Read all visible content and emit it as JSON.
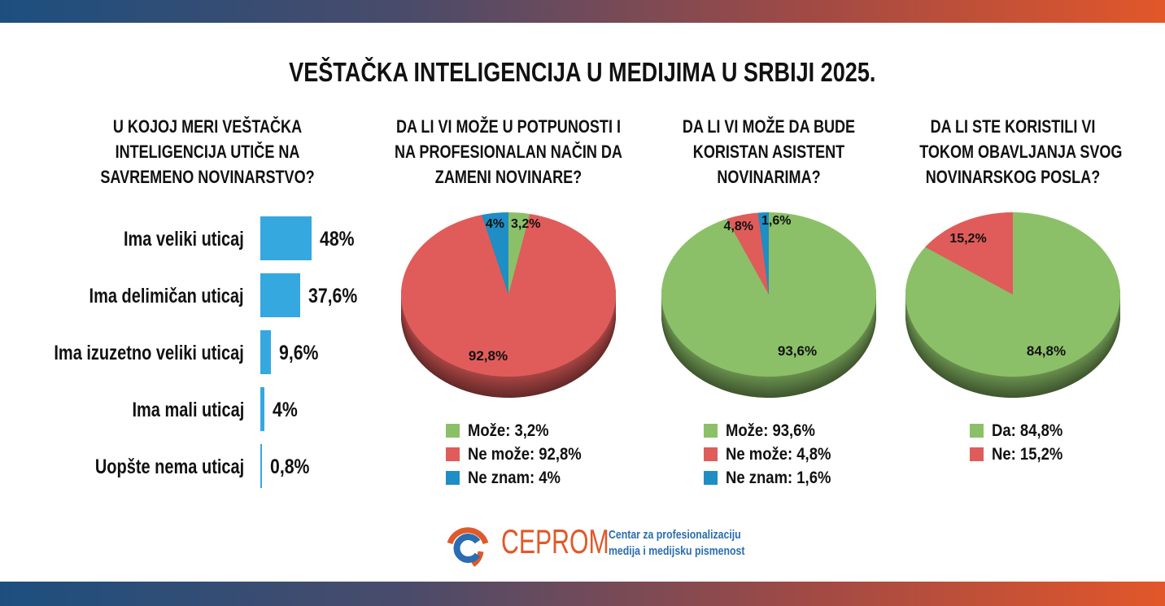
{
  "title": "VEŠTAČKA INTELIGENCIJA U MEDIJIMA U SRBIJI 2025.",
  "colors": {
    "bar": "#35a8e0",
    "green": "#8cc068",
    "red": "#e05c5a",
    "blue": "#1e8ec4",
    "brand_orange": "#e0592a",
    "brand_blue": "#2a6db0"
  },
  "chart_data": [
    {
      "type": "bar",
      "orientation": "horizontal",
      "title": "U KOJOJ MERI VEŠTAČKA INTELIGENCIJA UTIČE NA SAVREMENO NOVINARSTVO?",
      "title_lines": [
        "U KOJOJ MERI VEŠTAČKA",
        "INTELIGENCIJA UTIČE NA",
        "SAVREMENO NOVINARSTVO?"
      ],
      "categories": [
        "Ima veliki uticaj",
        "Ima delimičan uticaj",
        "Ima izuzetno veliki uticaj",
        "Ima mali uticaj",
        "Uopšte nema uticaj"
      ],
      "values": [
        48,
        37.6,
        9.6,
        4,
        0.8
      ],
      "labels": [
        "48%",
        "37,6%",
        "9,6%",
        "4%",
        "0,8%"
      ]
    },
    {
      "type": "pie",
      "title": "DA LI VI MOŽE U POTPUNOSTI I NA PROFESIONALAN NAČIN DA ZAMENI NOVINARE?",
      "title_lines": [
        "DA LI VI MOŽE U POTPUNOSTI I",
        "NA PROFESIONALAN NAČIN DA",
        "ZAMENI NOVINARE?"
      ],
      "slices": [
        {
          "name": "Može",
          "value": 3.2,
          "label": "3,2%",
          "legend": "Može: 3,2%",
          "color": "#8cc068"
        },
        {
          "name": "Ne može",
          "value": 92.8,
          "label": "92,8%",
          "legend": "Ne može: 92,8%",
          "color": "#e05c5a"
        },
        {
          "name": "Ne znam",
          "value": 4,
          "label": "4%",
          "legend": "Ne znam: 4%",
          "color": "#1e8ec4"
        }
      ]
    },
    {
      "type": "pie",
      "title": "DA LI VI MOŽE DA BUDE KORISTAN ASISTENT NOVINARIMA?",
      "title_lines": [
        "DA LI VI MOŽE DA BUDE",
        "KORISTAN ASISTENT",
        "NOVINARIMA?"
      ],
      "slices": [
        {
          "name": "Može",
          "value": 93.6,
          "label": "93,6%",
          "legend": "Može: 93,6%",
          "color": "#8cc068"
        },
        {
          "name": "Ne može",
          "value": 4.8,
          "label": "4,8%",
          "legend": "Ne može: 4,8%",
          "color": "#e05c5a"
        },
        {
          "name": "Ne znam",
          "value": 1.6,
          "label": "1,6%",
          "legend": "Ne znam: 1,6%",
          "color": "#1e8ec4"
        }
      ]
    },
    {
      "type": "pie",
      "title": "DA LI STE KORISTILI VI TOKOM OBAVLJANJA SVOG NOVINARSKOG POSLA?",
      "title_lines": [
        "DA LI STE KORISTILI VI",
        "TOKOM OBAVLJANJA SVOG",
        "NOVINARSKOG POSLA?"
      ],
      "slices": [
        {
          "name": "Da",
          "value": 84.8,
          "label": "84,8%",
          "legend": "Da: 84,8%",
          "color": "#8cc068"
        },
        {
          "name": "Ne",
          "value": 15.2,
          "label": "15,2%",
          "legend": "Ne: 15,2%",
          "color": "#e05c5a"
        }
      ]
    }
  ],
  "footer": {
    "brand": "CEPROM",
    "subtitle_lines": [
      "Centar za profesionalizaciju",
      "medija i medijsku pismenost"
    ]
  }
}
